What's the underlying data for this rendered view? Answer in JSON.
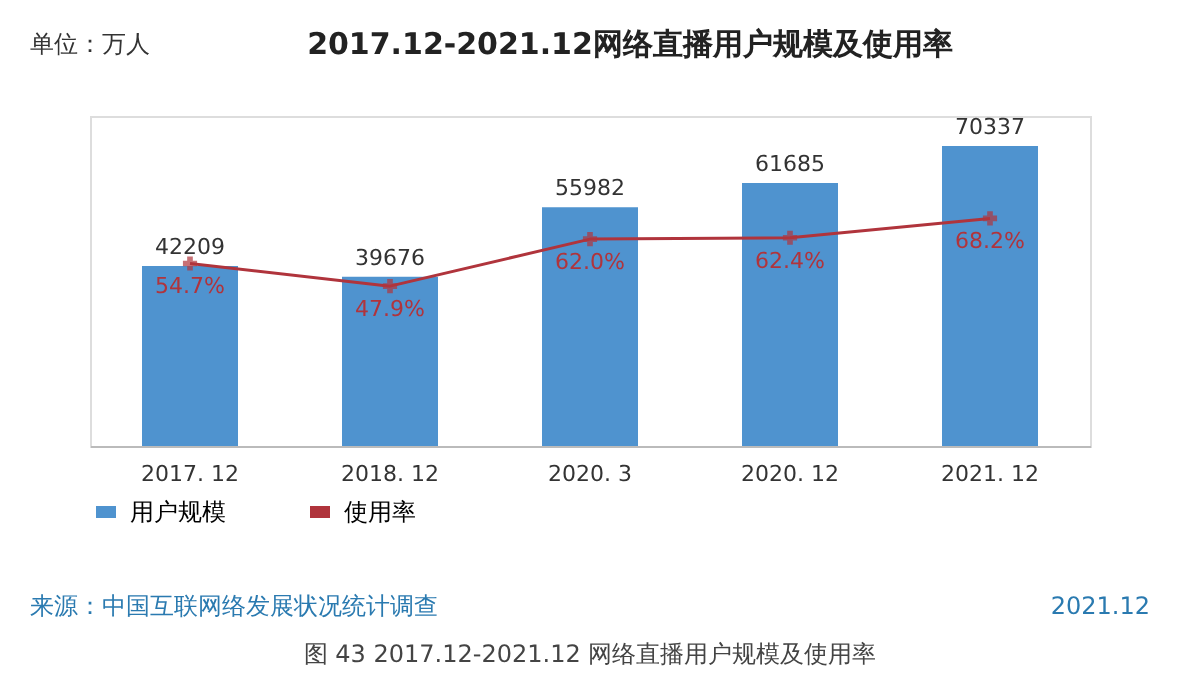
{
  "chart_data": {
    "type": "bar",
    "title": "2017.12-2021.12网络直播用户规模及使用率",
    "categories": [
      "2017. 12",
      "2018. 12",
      "2020. 3",
      "2020. 12",
      "2021. 12"
    ],
    "series": [
      {
        "name": "用户规模",
        "color": "#4f93cf",
        "values": [
          42209,
          39676,
          55982,
          61685,
          70337
        ]
      },
      {
        "name": "使用率",
        "type": "line",
        "axis": "y2",
        "color": "#b0343c",
        "marker": "cross",
        "values": [
          54.7,
          47.9,
          62.0,
          62.4,
          68.2
        ],
        "value_labels": [
          "54.7%",
          "47.9%",
          "62.0%",
          "62.4%",
          "68.2%"
        ]
      }
    ],
    "data_labels": true,
    "tick_labels": "x",
    "legend": "bottom",
    "annotations": [
      "单位：万人",
      "来源：中国互联网络发展状况统计调查",
      "2021.12",
      "图 43  2017.12-2021.12 网络直播用户规模及使用率"
    ]
  }
}
